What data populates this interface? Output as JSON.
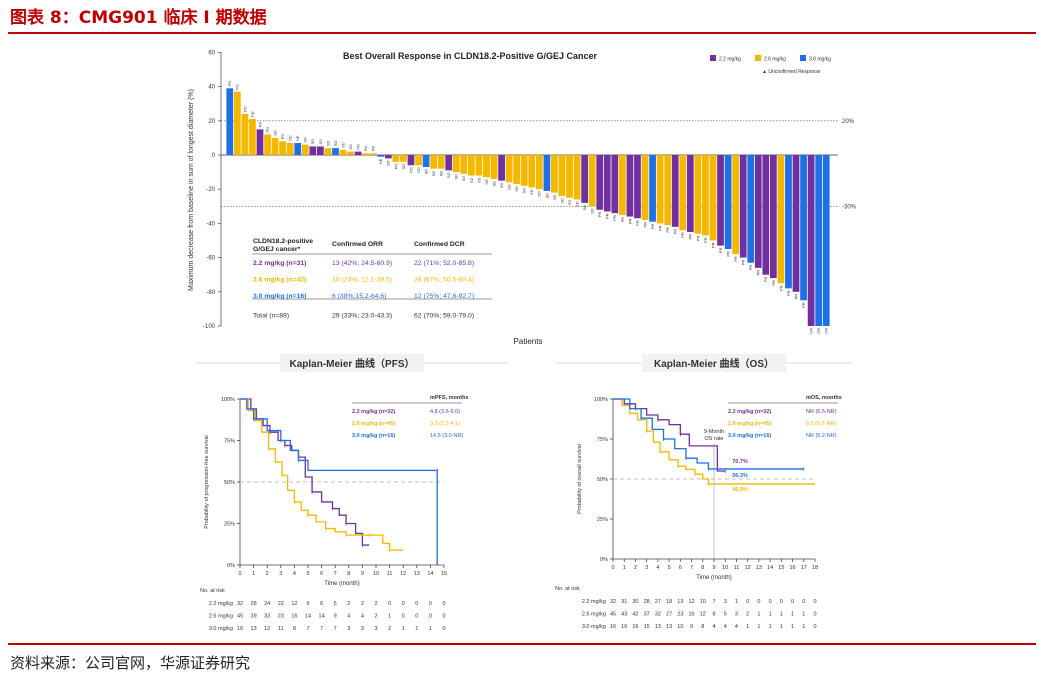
{
  "figure_title": "图表 8：CMG901 临床 I 期数据",
  "source": "资料来源：公司官网，华源证券研究",
  "colors": {
    "purple": "#7030a0",
    "gold": "#f5b800",
    "blue": "#1f6fe5",
    "grey": "#888888",
    "red": "#c00000"
  },
  "chart_data": [
    {
      "type": "bar",
      "title": "Best Overall Response in CLDN18.2-Positive G/GEJ Cancer",
      "xlabel": "Patients",
      "ylabel": "Maximum decrease from baseline in sum of longest diameter (%)",
      "ylim": [
        -100,
        60
      ],
      "yticks": [
        "60",
        "40",
        "20",
        "0",
        "-20",
        "-40",
        "-60",
        "-80",
        "-100"
      ],
      "reference_lines": [
        {
          "value": 20,
          "label": "20%"
        },
        {
          "value": -30,
          "label": "-30%"
        }
      ],
      "legend": [
        {
          "label": "2.2 mg/kg",
          "color": "#7030a0"
        },
        {
          "label": "2.6 mg/kg",
          "color": "#f5b800"
        },
        {
          "label": "3.0 mg/kg",
          "color": "#1f6fe5"
        }
      ],
      "legend_note": "▲ Unconfirmed Response",
      "series_codes": [
        "3.0 mg/kg",
        "2.6 mg/kg",
        "2.2 mg/kg"
      ],
      "bars": [
        {
          "v": 39,
          "c": 0,
          "r": "PD"
        },
        {
          "v": 37,
          "c": 1,
          "r": "PD"
        },
        {
          "v": 24,
          "c": 1,
          "r": "PD"
        },
        {
          "v": 21,
          "c": 1,
          "r": "PD"
        },
        {
          "v": 15,
          "c": 2,
          "r": "PD"
        },
        {
          "v": 12,
          "c": 1,
          "r": "PD"
        },
        {
          "v": 10,
          "c": 1,
          "r": "SD"
        },
        {
          "v": 8,
          "c": 1,
          "r": "PD"
        },
        {
          "v": 7,
          "c": 1,
          "r": "SD"
        },
        {
          "v": 7,
          "c": 0,
          "r": "NE"
        },
        {
          "v": 6,
          "c": 1,
          "r": "SD"
        },
        {
          "v": 5,
          "c": 2,
          "r": "SD"
        },
        {
          "v": 5,
          "c": 2,
          "r": "SD"
        },
        {
          "v": 4,
          "c": 1,
          "r": "SD"
        },
        {
          "v": 4,
          "c": 0,
          "r": "SD"
        },
        {
          "v": 3,
          "c": 1,
          "r": "SD"
        },
        {
          "v": 2,
          "c": 1,
          "r": "SD"
        },
        {
          "v": 2,
          "c": 2,
          "r": "PD"
        },
        {
          "v": 1,
          "c": 1,
          "r": "SD"
        },
        {
          "v": 1,
          "c": 1,
          "r": "PD"
        },
        {
          "v": -1,
          "c": 0,
          "r": "NE"
        },
        {
          "v": -2,
          "c": 2,
          "r": "SD"
        },
        {
          "v": -4,
          "c": 1,
          "r": "PD"
        },
        {
          "v": -4,
          "c": 1,
          "r": "SD"
        },
        {
          "v": -6,
          "c": 2,
          "r": "PD"
        },
        {
          "v": -6,
          "c": 1,
          "r": "SD"
        },
        {
          "v": -7,
          "c": 0,
          "r": "SD"
        },
        {
          "v": -8,
          "c": 1,
          "r": "SD"
        },
        {
          "v": -8,
          "c": 1,
          "r": "SD"
        },
        {
          "v": -9,
          "c": 2,
          "r": "SD"
        },
        {
          "v": -10,
          "c": 1,
          "r": "SD"
        },
        {
          "v": -11,
          "c": 1,
          "r": "SD"
        },
        {
          "v": -12,
          "c": 1,
          "r": "SD"
        },
        {
          "v": -12,
          "c": 1,
          "r": "SD"
        },
        {
          "v": -13,
          "c": 1,
          "r": "SD"
        },
        {
          "v": -14,
          "c": 1,
          "r": "SD"
        },
        {
          "v": -15,
          "c": 2,
          "r": "SD"
        },
        {
          "v": -16,
          "c": 1,
          "r": "SD"
        },
        {
          "v": -17,
          "c": 1,
          "r": "SD"
        },
        {
          "v": -18,
          "c": 1,
          "r": "SD"
        },
        {
          "v": -19,
          "c": 1,
          "r": "SD"
        },
        {
          "v": -20,
          "c": 1,
          "r": "SD"
        },
        {
          "v": -21,
          "c": 0,
          "r": "SD"
        },
        {
          "v": -22,
          "c": 1,
          "r": "SD"
        },
        {
          "v": -24,
          "c": 1,
          "r": "SD"
        },
        {
          "v": -25,
          "c": 1,
          "r": "SD"
        },
        {
          "v": -26,
          "c": 1,
          "r": "SD"
        },
        {
          "v": -28,
          "c": 2,
          "r": "SD"
        },
        {
          "v": -30,
          "c": 1,
          "r": "SD"
        },
        {
          "v": -32,
          "c": 2,
          "r": "PR"
        },
        {
          "v": -33,
          "c": 2,
          "r": "PR"
        },
        {
          "v": -34,
          "c": 2,
          "r": "PR"
        },
        {
          "v": -35,
          "c": 1,
          "r": "PR"
        },
        {
          "v": -36,
          "c": 2,
          "r": "PR"
        },
        {
          "v": -37,
          "c": 2,
          "r": "PR"
        },
        {
          "v": -38,
          "c": 1,
          "r": "PR"
        },
        {
          "v": -39,
          "c": 0,
          "r": "PR"
        },
        {
          "v": -40,
          "c": 1,
          "r": "PR"
        },
        {
          "v": -41,
          "c": 1,
          "r": "PR"
        },
        {
          "v": -42,
          "c": 2,
          "r": "PR"
        },
        {
          "v": -44,
          "c": 1,
          "r": "PR"
        },
        {
          "v": -45,
          "c": 2,
          "r": "PR"
        },
        {
          "v": -46,
          "c": 1,
          "r": "PR"
        },
        {
          "v": -47,
          "c": 1,
          "r": "PR"
        },
        {
          "v": -50,
          "c": 1,
          "r": "PR"
        },
        {
          "v": -53,
          "c": 2,
          "r": "PR"
        },
        {
          "v": -55,
          "c": 0,
          "r": "PR"
        },
        {
          "v": -58,
          "c": 1,
          "r": "PR"
        },
        {
          "v": -60,
          "c": 2,
          "r": "PR"
        },
        {
          "v": -63,
          "c": 0,
          "r": "PR"
        },
        {
          "v": -66,
          "c": 2,
          "r": "PR"
        },
        {
          "v": -70,
          "c": 2,
          "r": "PR"
        },
        {
          "v": -72,
          "c": 2,
          "r": "PR"
        },
        {
          "v": -75,
          "c": 1,
          "r": "PR"
        },
        {
          "v": -78,
          "c": 0,
          "r": "PR"
        },
        {
          "v": -80,
          "c": 2,
          "r": "PR"
        },
        {
          "v": -85,
          "c": 0,
          "r": "PR"
        },
        {
          "v": -100,
          "c": 2,
          "r": "CR"
        },
        {
          "v": -100,
          "c": 0,
          "r": "CR"
        },
        {
          "v": -100,
          "c": 0,
          "r": "CR"
        }
      ],
      "table": {
        "headers": [
          "CLDN18.2-positive G/GEJ cancer*",
          "Confirmed ORR",
          "Confirmed DCR"
        ],
        "rows": [
          {
            "group": "2.2 mg/kg (n=31)",
            "orr": "13 (42%; 24.5-60.9)",
            "dcr": "22 (71%; 52.0-85.8)",
            "color": "#7030a0"
          },
          {
            "group": "2.6 mg/kg (n=42)",
            "orr": "10 (24%; 12.1-39.5)",
            "dcr": "28 (67%; 50.5-80.4)",
            "color": "#f5b800"
          },
          {
            "group": "3.0 mg/kg (n=16)",
            "orr": "6 (38%;15.2-64.6)",
            "dcr": "12 (75%; 47.6-92.7)",
            "color": "#1f6fe5"
          },
          {
            "group": "Total (n=89)",
            "orr": "29 (33%; 23.0-43.3)",
            "dcr": "62 (70%; 59.0-79.0)",
            "color": "#333333"
          }
        ]
      }
    },
    {
      "type": "line",
      "title": "Kaplan-Meier 曲线（PFS）",
      "xlabel": "Time (month)",
      "ylabel": "Probability of progression-free survival",
      "xlim": [
        0,
        15
      ],
      "xticks": [
        "0",
        "1",
        "2",
        "3",
        "4",
        "5",
        "6",
        "7",
        "8",
        "9",
        "10",
        "11",
        "12",
        "13",
        "14",
        "15"
      ],
      "yticks": [
        "100%",
        "75%",
        "50%",
        "25%",
        "0%"
      ],
      "ylim": [
        0,
        1
      ],
      "median_header": "mPFS, months",
      "series": [
        {
          "name": "2.2 mg/kg (n=32)",
          "median": "4.8 (3.6-6.0)",
          "color": "#7030a0",
          "x": [
            0,
            0.8,
            1.2,
            1.7,
            2.2,
            2.8,
            3.3,
            3.8,
            4.3,
            4.8,
            5.3,
            6,
            6.8,
            7.3,
            7.8,
            8.5,
            9,
            9.5
          ],
          "y": [
            1,
            0.94,
            0.88,
            0.84,
            0.8,
            0.75,
            0.72,
            0.69,
            0.65,
            0.53,
            0.44,
            0.38,
            0.34,
            0.3,
            0.25,
            0.19,
            0.12,
            0.12
          ]
        },
        {
          "name": "2.6 mg/kg (n=45)",
          "median": "3.3 (2.2-4.1)",
          "color": "#f5b800",
          "x": [
            0,
            0.6,
            1.1,
            1.6,
            2.1,
            2.6,
            3.1,
            3.5,
            4,
            4.5,
            5,
            5.6,
            6.3,
            7,
            7.8,
            8.5,
            9.5,
            10.5,
            11,
            12
          ],
          "y": [
            1,
            0.93,
            0.87,
            0.8,
            0.7,
            0.62,
            0.54,
            0.45,
            0.38,
            0.33,
            0.3,
            0.26,
            0.22,
            0.2,
            0.18,
            0.18,
            0.18,
            0.13,
            0.09,
            0.09
          ]
        },
        {
          "name": "3.0 mg/kg (n=16)",
          "median": "14.5 (3.0-NR)",
          "color": "#1f6fe5",
          "x": [
            0,
            0.5,
            1,
            2,
            3,
            3.7,
            4.3,
            5,
            14.5,
            14.5
          ],
          "y": [
            1,
            0.94,
            0.88,
            0.81,
            0.75,
            0.69,
            0.63,
            0.57,
            0.57,
            0
          ]
        }
      ],
      "risk_header": "No. at risk",
      "risk_rows": [
        {
          "label": "2.2 mg/kg",
          "values": [
            "32",
            "28",
            "24",
            "22",
            "12",
            "6",
            "6",
            "5",
            "2",
            "2",
            "2",
            "0",
            "0",
            "0",
            "0",
            "0"
          ]
        },
        {
          "label": "2.6 mg/kg",
          "values": [
            "45",
            "39",
            "33",
            "23",
            "16",
            "14",
            "14",
            "9",
            "4",
            "4",
            "2",
            "1",
            "0",
            "0",
            "0",
            "0"
          ]
        },
        {
          "label": "3.0 mg/kg",
          "values": [
            "16",
            "13",
            "12",
            "11",
            "8",
            "7",
            "7",
            "7",
            "3",
            "3",
            "3",
            "2",
            "1",
            "1",
            "1",
            "0"
          ]
        }
      ]
    },
    {
      "type": "line",
      "title": "Kaplan-Meier 曲线（OS）",
      "xlabel": "Time (month)",
      "ylabel": "Probability of overall survival",
      "xlim": [
        0,
        18
      ],
      "xticks": [
        "0",
        "1",
        "2",
        "3",
        "4",
        "5",
        "6",
        "7",
        "8",
        "9",
        "10",
        "11",
        "12",
        "13",
        "14",
        "15",
        "16",
        "17",
        "18"
      ],
      "yticks": [
        "100%",
        "75%",
        "50%",
        "25%",
        "0%"
      ],
      "ylim": [
        0,
        1
      ],
      "median_header": "mOS, months",
      "annotation": [
        "9-Month",
        "OS rate"
      ],
      "landmark_month": 9,
      "rate_labels": [
        {
          "text": "70.7%",
          "y": 0.707,
          "color": "#7030a0"
        },
        {
          "text": "56.3%",
          "y": 0.563,
          "color": "#1f6fe5"
        },
        {
          "text": "46.9%",
          "y": 0.469,
          "color": "#f5b800"
        }
      ],
      "series": [
        {
          "name": "2.2 mg/kg (n=32)",
          "median": "NR (6.5-NR)",
          "color": "#7030a0",
          "x": [
            0,
            1,
            2,
            3,
            4,
            5,
            6,
            6.8,
            9,
            9.3,
            10
          ],
          "y": [
            1,
            0.97,
            0.94,
            0.9,
            0.87,
            0.84,
            0.78,
            0.707,
            0.707,
            0.55,
            0.55
          ]
        },
        {
          "name": "2.6 mg/kg (n=45)",
          "median": "8.5 (6.2-NR)",
          "color": "#f5b800",
          "x": [
            0,
            0.8,
            1.5,
            2.2,
            3,
            3.6,
            4.2,
            5,
            5.8,
            6.5,
            7.3,
            8,
            8.5,
            18
          ],
          "y": [
            1,
            0.96,
            0.91,
            0.87,
            0.8,
            0.73,
            0.67,
            0.62,
            0.58,
            0.56,
            0.53,
            0.5,
            0.469,
            0.469
          ]
        },
        {
          "name": "3.0 mg/kg (n=16)",
          "median": "NR (5.2-NR)",
          "color": "#1f6fe5",
          "x": [
            0,
            1.5,
            2.5,
            3.5,
            4.5,
            5.5,
            6.5,
            7.5,
            8.5,
            9.5,
            17
          ],
          "y": [
            1,
            0.94,
            0.88,
            0.81,
            0.75,
            0.69,
            0.63,
            0.6,
            0.563,
            0.563,
            0.563
          ]
        }
      ],
      "risk_header": "No. at risk",
      "risk_rows": [
        {
          "label": "2.2 mg/kg",
          "values": [
            "32",
            "31",
            "30",
            "28",
            "27",
            "18",
            "13",
            "12",
            "10",
            "7",
            "3",
            "1",
            "0",
            "0",
            "0",
            "0",
            "0",
            "0",
            "0"
          ]
        },
        {
          "label": "2.6 mg/kg",
          "values": [
            "45",
            "43",
            "42",
            "37",
            "32",
            "27",
            "23",
            "16",
            "12",
            "8",
            "5",
            "3",
            "2",
            "1",
            "1",
            "1",
            "1",
            "1",
            "0"
          ]
        },
        {
          "label": "3.0 mg/kg",
          "values": [
            "16",
            "16",
            "16",
            "15",
            "13",
            "13",
            "10",
            "9",
            "8",
            "4",
            "4",
            "4",
            "1",
            "1",
            "1",
            "1",
            "1",
            "1",
            "0"
          ]
        }
      ]
    }
  ]
}
